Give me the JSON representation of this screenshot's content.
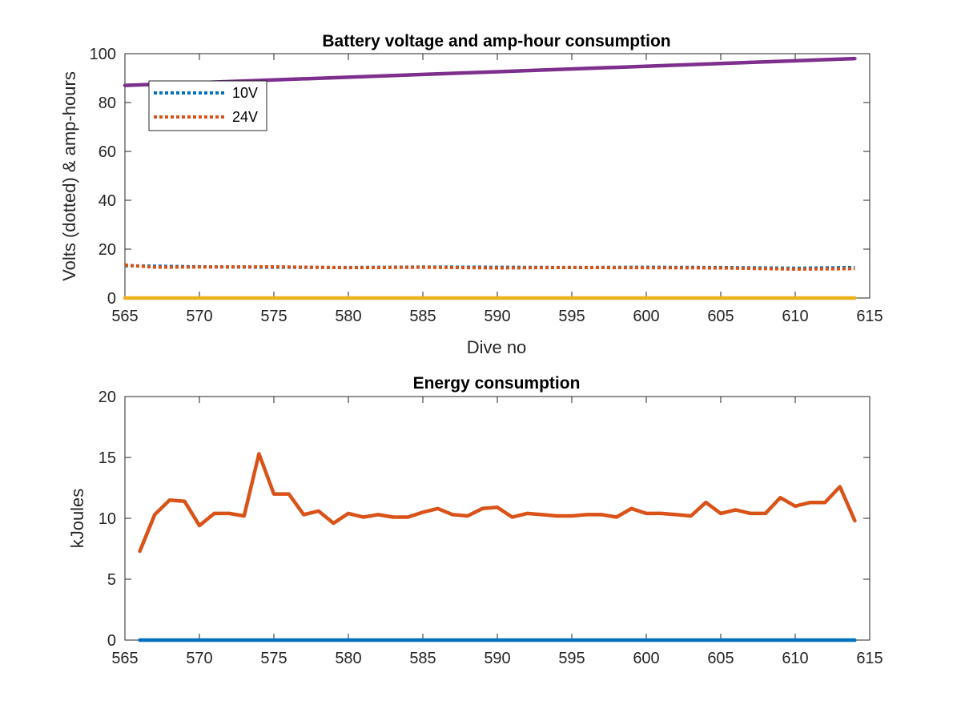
{
  "chart_data": [
    {
      "type": "line",
      "title": "Battery voltage and amp-hour consumption",
      "xlabel": "Dive no",
      "ylabel": "Volts (dotted) & amp-hours",
      "xlim": [
        565,
        615
      ],
      "ylim": [
        0,
        100
      ],
      "xticks": [
        565,
        570,
        575,
        580,
        585,
        590,
        595,
        600,
        605,
        610,
        615
      ],
      "yticks": [
        0,
        20,
        40,
        60,
        80,
        100
      ],
      "grid": false,
      "legend": {
        "placement": "top-left",
        "entries": [
          "10V",
          "24V"
        ]
      },
      "series": [
        {
          "name": "10V",
          "style": "dotted",
          "color": "#0072BD",
          "x": [
            565,
            570,
            575,
            580,
            585,
            590,
            595,
            600,
            605,
            610,
            614
          ],
          "y": [
            13.2,
            12.8,
            12.6,
            12.5,
            12.7,
            12.6,
            12.5,
            12.6,
            12.5,
            12.2,
            12.5
          ]
        },
        {
          "name": "24V",
          "style": "dotted",
          "color": "#D95319",
          "x": [
            565,
            567,
            570,
            575,
            580,
            585,
            590,
            595,
            600,
            605,
            610,
            614
          ],
          "y": [
            13.5,
            12.6,
            12.7,
            12.8,
            12.4,
            12.6,
            12.3,
            12.5,
            12.4,
            12.3,
            11.8,
            12.0
          ]
        },
        {
          "style": "solid",
          "color": "#7E2F8E",
          "x": [
            565,
            614
          ],
          "y": [
            87,
            98
          ]
        },
        {
          "style": "solid",
          "color": "#EDB120",
          "x": [
            565,
            614
          ],
          "y": [
            0,
            0
          ]
        }
      ]
    },
    {
      "type": "line",
      "title": "Energy consumption",
      "xlabel": "",
      "ylabel": "kJoules",
      "xlim": [
        565,
        615
      ],
      "ylim": [
        0,
        20
      ],
      "xticks": [
        565,
        570,
        575,
        580,
        585,
        590,
        595,
        600,
        605,
        610,
        615
      ],
      "yticks": [
        0,
        5,
        10,
        15,
        20
      ],
      "grid": false,
      "series": [
        {
          "style": "solid",
          "color": "#D95319",
          "x": [
            566,
            567,
            568,
            569,
            570,
            571,
            572,
            573,
            574,
            575,
            576,
            577,
            578,
            579,
            580,
            581,
            582,
            583,
            584,
            585,
            586,
            587,
            588,
            589,
            590,
            591,
            592,
            593,
            594,
            595,
            596,
            597,
            598,
            599,
            600,
            601,
            602,
            603,
            604,
            605,
            606,
            607,
            608,
            609,
            610,
            611,
            612,
            613,
            614
          ],
          "y": [
            7.3,
            10.3,
            11.5,
            11.4,
            9.4,
            10.4,
            10.4,
            10.2,
            15.3,
            12.0,
            12.0,
            10.3,
            10.6,
            9.6,
            10.4,
            10.1,
            10.3,
            10.1,
            10.1,
            10.5,
            10.8,
            10.3,
            10.2,
            10.8,
            10.9,
            10.1,
            10.4,
            10.3,
            10.2,
            10.2,
            10.3,
            10.3,
            10.1,
            10.8,
            10.4,
            10.4,
            10.3,
            10.2,
            11.3,
            10.4,
            10.7,
            10.4,
            10.4,
            11.7,
            11.0,
            11.3,
            11.3,
            12.6,
            9.8
          ]
        },
        {
          "style": "solid",
          "color": "#0072BD",
          "x": [
            566,
            614
          ],
          "y": [
            0,
            0
          ]
        }
      ]
    }
  ]
}
